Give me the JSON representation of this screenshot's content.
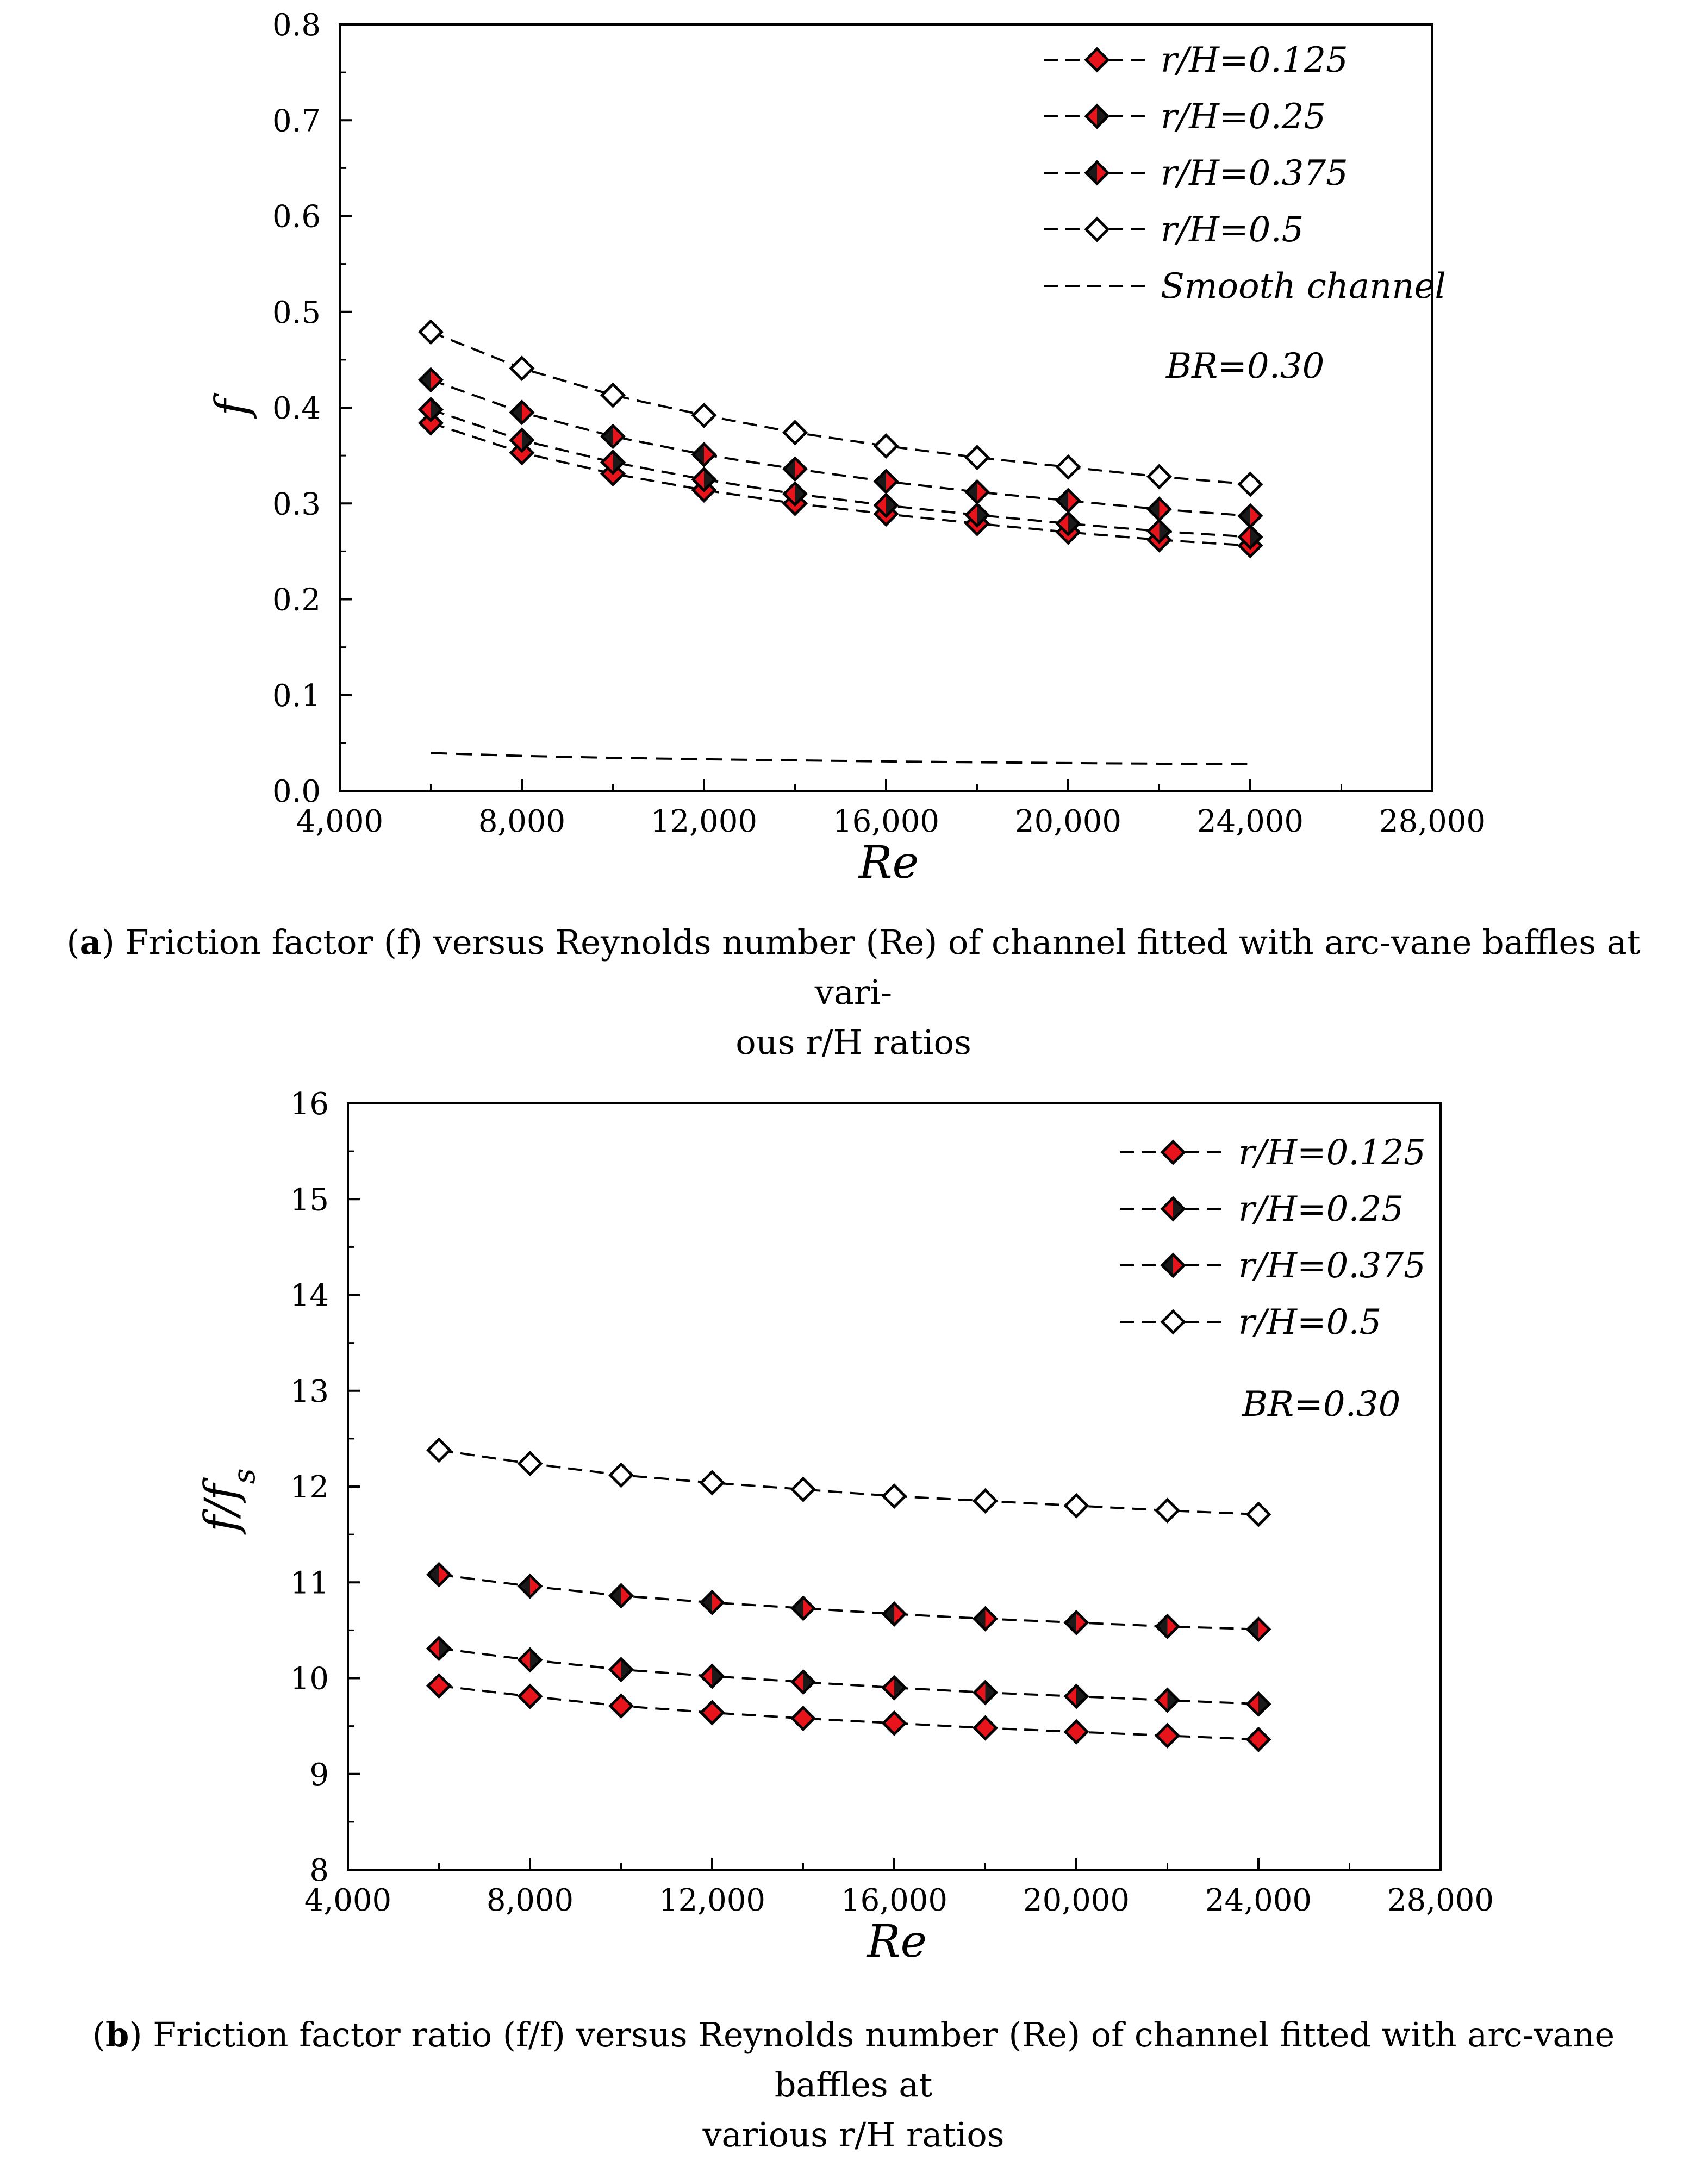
{
  "colors": {
    "red_fill": "#e8141c",
    "dark_fill": "#1a1a1a",
    "open_fill": "#ffffff",
    "line": "#000000"
  },
  "chart_data": [
    {
      "type": "line",
      "ylabel": "f",
      "xlabel": "Re",
      "xlim": [
        4000,
        28000
      ],
      "ylim": [
        0,
        0.8
      ],
      "xticks": [
        4000,
        8000,
        12000,
        16000,
        20000,
        24000,
        28000
      ],
      "xtick_labels": [
        "4,000",
        "8,000",
        "12,000",
        "16,000",
        "20,000",
        "24,000",
        "28,000"
      ],
      "yticks": [
        0,
        0.1,
        0.2,
        0.3,
        0.4,
        0.5,
        0.6,
        0.7,
        0.8
      ],
      "ytick_labels": [
        "0.0",
        "0.1",
        "0.2",
        "0.3",
        "0.4",
        "0.5",
        "0.6",
        "0.7",
        "0.8"
      ],
      "legend_position": "top-right",
      "annotation": "BR=0.30",
      "x": [
        6000,
        8000,
        10000,
        12000,
        14000,
        16000,
        18000,
        20000,
        22000,
        24000
      ],
      "series": [
        {
          "name": "r/H=0.125",
          "marker": "red",
          "values": [
            0.384,
            0.353,
            0.331,
            0.314,
            0.3,
            0.289,
            0.279,
            0.27,
            0.262,
            0.256
          ]
        },
        {
          "name": "r/H=0.25",
          "marker": "red-dark",
          "values": [
            0.398,
            0.366,
            0.343,
            0.325,
            0.31,
            0.298,
            0.288,
            0.279,
            0.271,
            0.265
          ]
        },
        {
          "name": "r/H=0.375",
          "marker": "dark-red",
          "values": [
            0.429,
            0.395,
            0.37,
            0.351,
            0.336,
            0.323,
            0.312,
            0.303,
            0.294,
            0.287
          ]
        },
        {
          "name": "r/H=0.5",
          "marker": "open",
          "values": [
            0.479,
            0.441,
            0.413,
            0.392,
            0.374,
            0.36,
            0.348,
            0.338,
            0.328,
            0.32
          ]
        },
        {
          "name": "Smooth channel",
          "marker": "none",
          "values": [
            0.0395,
            0.0365,
            0.0345,
            0.033,
            0.0318,
            0.0307,
            0.0298,
            0.029,
            0.0284,
            0.0278
          ]
        }
      ]
    },
    {
      "type": "line",
      "ylabel": "f/f",
      "ylabel_sub": "s",
      "xlabel": "Re",
      "xlim": [
        4000,
        28000
      ],
      "ylim": [
        8,
        16
      ],
      "xticks": [
        4000,
        8000,
        12000,
        16000,
        20000,
        24000,
        28000
      ],
      "xtick_labels": [
        "4,000",
        "8,000",
        "12,000",
        "16,000",
        "20,000",
        "24,000",
        "28,000"
      ],
      "yticks": [
        8,
        9,
        10,
        11,
        12,
        13,
        14,
        15,
        16
      ],
      "ytick_labels": [
        "8",
        "9",
        "10",
        "11",
        "12",
        "13",
        "14",
        "15",
        "16"
      ],
      "legend_position": "top-right",
      "annotation": "BR=0.30",
      "x": [
        6000,
        8000,
        10000,
        12000,
        14000,
        16000,
        18000,
        20000,
        22000,
        24000
      ],
      "series": [
        {
          "name": "r/H=0.125",
          "marker": "red",
          "values": [
            9.92,
            9.81,
            9.71,
            9.64,
            9.58,
            9.53,
            9.48,
            9.44,
            9.4,
            9.36
          ]
        },
        {
          "name": "r/H=0.25",
          "marker": "red-dark",
          "values": [
            10.31,
            10.19,
            10.09,
            10.02,
            9.96,
            9.9,
            9.85,
            9.81,
            9.77,
            9.73
          ]
        },
        {
          "name": "r/H=0.375",
          "marker": "dark-red",
          "values": [
            11.08,
            10.96,
            10.86,
            10.79,
            10.73,
            10.67,
            10.62,
            10.58,
            10.54,
            10.51
          ]
        },
        {
          "name": "r/H=0.5",
          "marker": "open",
          "values": [
            12.38,
            12.24,
            12.12,
            12.04,
            11.97,
            11.9,
            11.85,
            11.8,
            11.75,
            11.71
          ]
        }
      ]
    }
  ],
  "captions": [
    {
      "label": "a",
      "line1": ") Friction factor (f) versus Reynolds number (Re) of channel fitted with arc-vane baffles at vari-",
      "line2": "ous r/H ratios"
    },
    {
      "label": "b",
      "line1": ") Friction factor ratio (f/f) versus Reynolds number (Re) of channel fitted with arc-vane baffles at",
      "line2": "various r/H ratios"
    }
  ]
}
